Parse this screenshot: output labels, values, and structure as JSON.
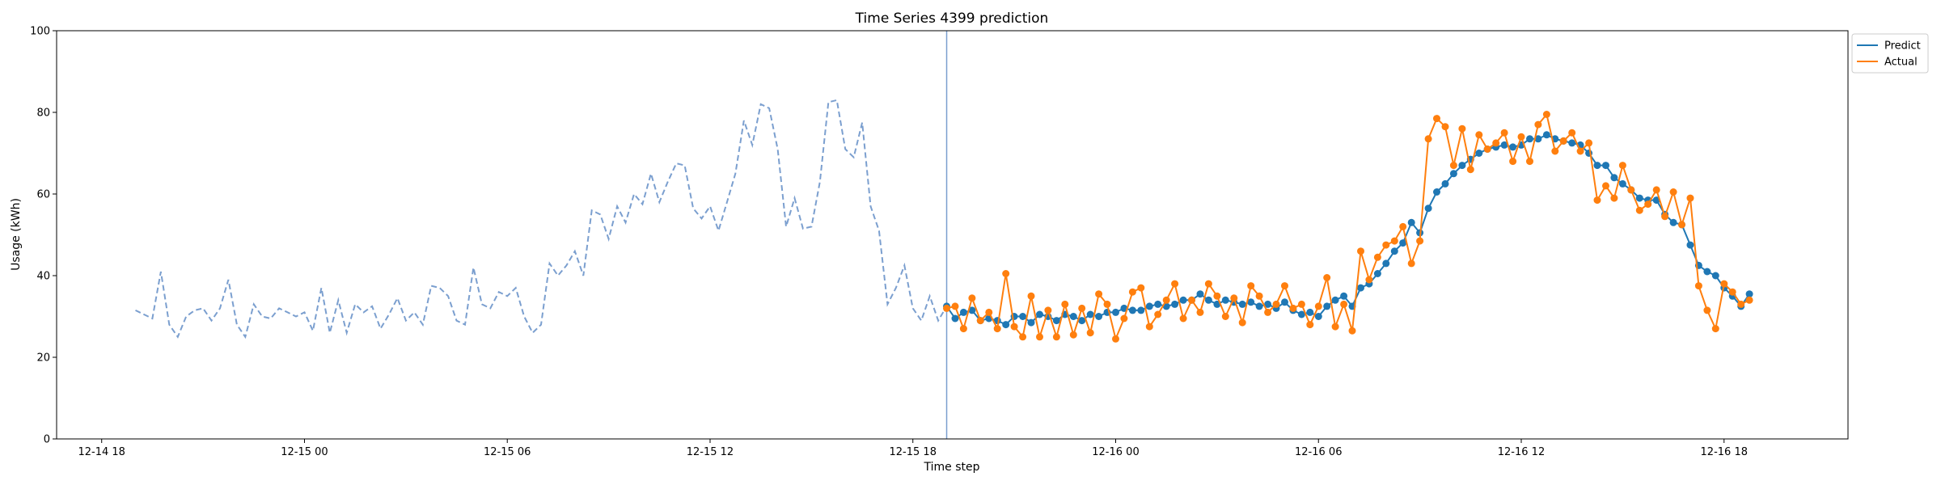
{
  "chart_data": {
    "type": "line",
    "title": "Time Series 4399 prediction",
    "xlabel": "Time step",
    "ylabel": "Usage (kWh)",
    "ylim": [
      0,
      100
    ],
    "xlim": [
      "2024-12-14T16:40",
      "2024-12-16T21:40"
    ],
    "yticks": [
      0,
      20,
      40,
      60,
      80,
      100
    ],
    "xticks": [
      {
        "t": "2024-12-14T18:00",
        "label": "12-14 18"
      },
      {
        "t": "2024-12-15T00:00",
        "label": "12-15 00"
      },
      {
        "t": "2024-12-15T06:00",
        "label": "12-15 06"
      },
      {
        "t": "2024-12-15T12:00",
        "label": "12-15 12"
      },
      {
        "t": "2024-12-15T18:00",
        "label": "12-15 18"
      },
      {
        "t": "2024-12-16T00:00",
        "label": "12-16 00"
      },
      {
        "t": "2024-12-16T06:00",
        "label": "12-16 06"
      },
      {
        "t": "2024-12-16T12:00",
        "label": "12-16 12"
      },
      {
        "t": "2024-12-16T18:00",
        "label": "12-16 18"
      }
    ],
    "grid": false,
    "legend_position": "upper right, outside plot",
    "interval_minutes": 15,
    "forecast_start": "2024-12-15T19:00",
    "history": {
      "start": "2024-12-14T19:00",
      "style": "dashed",
      "color": "#7b9fcf",
      "values": [
        31.5,
        30.5,
        29.5,
        41.0,
        28.0,
        25.0,
        30.0,
        31.5,
        32.0,
        29.0,
        32.0,
        39.0,
        28.0,
        25.0,
        33.0,
        30.0,
        29.5,
        32.0,
        31.0,
        30.0,
        31.0,
        26.5,
        37.0,
        26.0,
        34.0,
        26.0,
        33.0,
        31.0,
        32.5,
        27.0,
        30.5,
        34.5,
        29.0,
        31.0,
        28.0,
        37.5,
        37.0,
        35.0,
        29.0,
        28.0,
        42.0,
        33.0,
        32.0,
        36.0,
        35.0,
        37.0,
        30.0,
        26.0,
        28.0,
        43.0,
        40.0,
        42.5,
        46.0,
        40.0,
        56.0,
        55.0,
        49.0,
        57.0,
        53.0,
        60.0,
        57.5,
        65.0,
        58.0,
        63.0,
        67.5,
        67.0,
        56.5,
        54.0,
        57.0,
        51.0,
        58.0,
        65.0,
        78.0,
        72.0,
        82.0,
        81.0,
        71.0,
        52.0,
        59.0,
        51.5,
        52.0,
        63.0,
        82.5,
        83.0,
        71.0,
        69.0,
        77.5,
        57.0,
        51.0,
        33.0,
        37.0,
        42.5,
        32.0,
        29.0,
        35.0,
        29.0,
        32.5
      ]
    },
    "series": [
      {
        "name": "Predict",
        "color": "#1f77b4",
        "start": "2024-12-15T19:00",
        "values": [
          32.5,
          29.5,
          31.0,
          31.5,
          29.0,
          29.5,
          29.0,
          28.0,
          30.0,
          30.0,
          28.5,
          30.5,
          30.0,
          29.0,
          30.5,
          30.0,
          29.0,
          30.5,
          30.0,
          31.0,
          31.0,
          32.0,
          31.5,
          31.5,
          32.5,
          33.0,
          32.5,
          33.0,
          34.0,
          34.0,
          35.5,
          34.0,
          33.0,
          34.0,
          33.5,
          33.0,
          33.5,
          32.5,
          33.0,
          32.0,
          33.5,
          31.5,
          30.5,
          31.0,
          30.0,
          32.5,
          34.0,
          35.0,
          32.5,
          37.0,
          38.0,
          40.5,
          43.0,
          46.0,
          48.0,
          53.0,
          50.5,
          56.5,
          60.5,
          62.5,
          65.0,
          67.0,
          68.5,
          70.0,
          71.0,
          71.5,
          72.0,
          71.5,
          72.0,
          73.5,
          73.5,
          74.5,
          73.5,
          73.0,
          72.5,
          72.0,
          70.0,
          67.0,
          67.0,
          64.0,
          62.5,
          61.0,
          59.0,
          58.5,
          58.5,
          55.0,
          53.0,
          52.5,
          47.5,
          42.5,
          41.0,
          40.0,
          37.0,
          35.0,
          32.5,
          35.5
        ]
      },
      {
        "name": "Actual",
        "color": "#ff7f0e",
        "start": "2024-12-15T19:00",
        "values": [
          32.0,
          32.5,
          27.0,
          34.5,
          29.0,
          31.0,
          27.0,
          40.5,
          27.5,
          25.0,
          35.0,
          25.0,
          31.5,
          25.0,
          33.0,
          25.5,
          32.0,
          26.0,
          35.5,
          33.0,
          24.5,
          29.5,
          36.0,
          37.0,
          27.5,
          30.5,
          34.0,
          38.0,
          29.5,
          34.0,
          31.0,
          38.0,
          35.0,
          30.0,
          34.5,
          28.5,
          37.5,
          35.0,
          31.0,
          33.0,
          37.5,
          32.0,
          33.0,
          28.0,
          32.5,
          39.5,
          27.5,
          33.0,
          26.5,
          46.0,
          39.0,
          44.5,
          47.5,
          48.5,
          52.0,
          43.0,
          48.5,
          73.5,
          78.5,
          76.5,
          67.0,
          76.0,
          66.0,
          74.5,
          71.0,
          72.5,
          75.0,
          68.0,
          74.0,
          68.0,
          77.0,
          79.5,
          70.5,
          73.0,
          75.0,
          70.5,
          72.5,
          58.5,
          62.0,
          59.0,
          67.0,
          61.0,
          56.0,
          57.5,
          61.0,
          54.5,
          60.5,
          52.5,
          59.0,
          37.5,
          31.5,
          27.0,
          38.0,
          36.0,
          33.0,
          34.0
        ]
      }
    ],
    "legend": [
      "Predict",
      "Actual"
    ]
  }
}
